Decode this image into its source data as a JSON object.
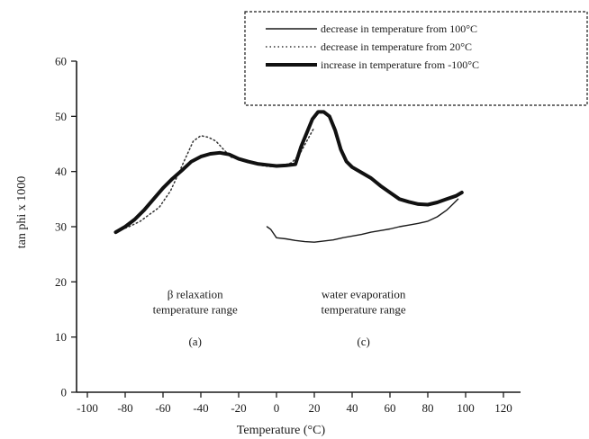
{
  "chart_data": {
    "type": "line",
    "title": "",
    "xlabel": "Temperature (°C)",
    "ylabel": "tan phi x 1000",
    "xlim": [
      -110,
      120
    ],
    "ylim": [
      0,
      60
    ],
    "x_ticks": [
      -100,
      -80,
      -60,
      -40,
      -20,
      0,
      20,
      40,
      60,
      80,
      100,
      120
    ],
    "x_tick_labels": [
      "-100",
      "-80",
      "-60",
      "-40",
      "-20",
      "0",
      "20",
      "40",
      "60",
      "80",
      "100",
      "120"
    ],
    "y_ticks": [
      0,
      10,
      20,
      30,
      40,
      50,
      60
    ],
    "y_tick_labels": [
      "0",
      "10",
      "20",
      "30",
      "40",
      "50",
      "60"
    ],
    "grid": false,
    "legend_position": "top-right",
    "series": [
      {
        "name": "decrease in temperature from 100°C",
        "style": "thin-solid",
        "x": [
          -5,
          -3,
          0,
          5,
          10,
          15,
          20,
          25,
          30,
          35,
          40,
          45,
          50,
          55,
          60,
          65,
          70,
          75,
          80,
          85,
          90,
          93,
          96
        ],
        "y": [
          30,
          29.5,
          28,
          27.8,
          27.5,
          27.3,
          27.2,
          27.4,
          27.6,
          28,
          28.3,
          28.6,
          29,
          29.3,
          29.6,
          30,
          30.3,
          30.6,
          31,
          31.8,
          33,
          34,
          35
        ]
      },
      {
        "name": "decrease in temperature from 20°C",
        "style": "dotted",
        "x": [
          -82,
          -78,
          -72,
          -68,
          -62,
          -56,
          -50,
          -44,
          -40,
          -36,
          -32,
          -28,
          -24,
          -20,
          -16,
          -12,
          -8,
          -4,
          0,
          4,
          8,
          12,
          16,
          20
        ],
        "y": [
          29.5,
          30,
          31,
          32,
          33.5,
          36.5,
          41,
          45.5,
          46.5,
          46.2,
          45.5,
          44,
          42.6,
          42.3,
          41.9,
          41.4,
          41.1,
          40.9,
          40.9,
          41.1,
          41.6,
          43,
          45.5,
          48
        ]
      },
      {
        "name": "increase in temperature from -100°C",
        "style": "thick-solid",
        "x": [
          -85,
          -80,
          -75,
          -70,
          -65,
          -60,
          -55,
          -50,
          -45,
          -40,
          -35,
          -30,
          -25,
          -20,
          -15,
          -10,
          -5,
          0,
          5,
          10,
          13,
          16,
          19,
          22,
          25,
          28,
          31,
          34,
          37,
          40,
          45,
          50,
          55,
          60,
          65,
          70,
          75,
          80,
          85,
          90,
          95,
          98
        ],
        "y": [
          29,
          30,
          31.3,
          33,
          35,
          37,
          38.7,
          40.2,
          41.8,
          42.7,
          43.2,
          43.4,
          43.1,
          42.3,
          41.8,
          41.4,
          41.2,
          41,
          41.1,
          41.3,
          44.5,
          47,
          49.5,
          50.8,
          50.8,
          50,
          47.5,
          44,
          41.8,
          40.8,
          39.8,
          38.8,
          37.4,
          36.2,
          35,
          34.5,
          34.1,
          34,
          34.4,
          35,
          35.6,
          36.2
        ]
      }
    ],
    "annotations": [
      {
        "lines": [
          "β relaxation",
          "temperature range"
        ],
        "anchor_x": -43,
        "anchor_y": 17
      },
      {
        "lines": [
          "(a)"
        ],
        "anchor_x": -43,
        "anchor_y": 8.5
      },
      {
        "lines": [
          "water evaporation",
          "temperature range"
        ],
        "anchor_x": 46,
        "anchor_y": 17
      },
      {
        "lines": [
          "(c)"
        ],
        "anchor_x": 46,
        "anchor_y": 8.5
      }
    ]
  }
}
